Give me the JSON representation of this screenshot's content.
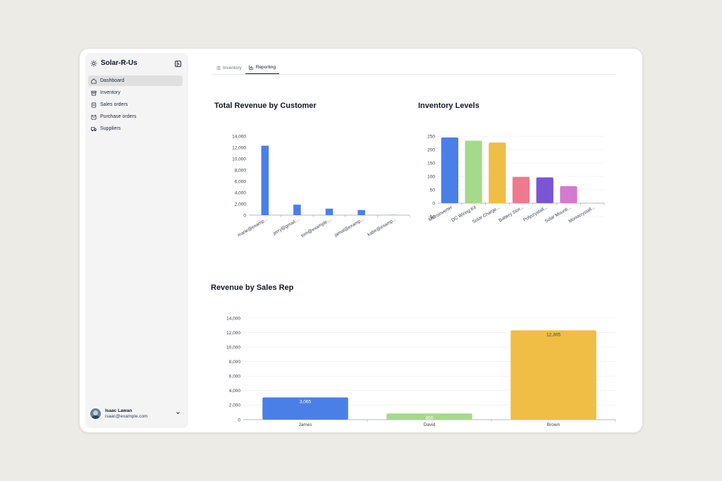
{
  "app": {
    "name": "Solar-R-Us"
  },
  "sidebar": {
    "items": [
      {
        "label": "Dashboard",
        "icon": "home-icon",
        "active": true
      },
      {
        "label": "Inventory",
        "icon": "box-icon",
        "active": false
      },
      {
        "label": "Sales orders",
        "icon": "receipt-icon",
        "active": false
      },
      {
        "label": "Purchase orders",
        "icon": "bag-icon",
        "active": false
      },
      {
        "label": "Suppliers",
        "icon": "truck-icon",
        "active": false
      }
    ],
    "user": {
      "name": "Isaac Lawan",
      "email": "isaac@example.com"
    }
  },
  "tabs": [
    {
      "label": "Inventory",
      "icon": "list-icon",
      "active": false
    },
    {
      "label": "Reporting",
      "icon": "bar-chart-icon",
      "active": true
    }
  ],
  "colors": {
    "blue": "#4a7fe8",
    "green": "#a5d98b",
    "yellow": "#f0bd45",
    "pink": "#ee7a8f",
    "purple": "#7a55d6",
    "orchid": "#d47ad0"
  },
  "chart_data": [
    {
      "type": "bar",
      "title": "Total Revenue by Customer",
      "categories": [
        "marie@examp...",
        "jerry@gmail....",
        "tom@example....",
        "jamal@examp...",
        "kabir@examp..."
      ],
      "values": [
        12305,
        1850,
        1150,
        900,
        40
      ],
      "ylim": [
        0,
        14000
      ],
      "yticks": [
        "0",
        "2,000",
        "4,000",
        "6,000",
        "8,000",
        "10,000",
        "12,000",
        "14,000"
      ],
      "color": "#4a7fe8",
      "grid": false
    },
    {
      "type": "bar",
      "title": "Inventory Levels",
      "categories": [
        "Microinverter",
        "DC Wiring Kit",
        "Solar Charge...",
        "Battery Stor...",
        "Polycrystall...",
        "Solar Mounti...",
        "Monocrystall..."
      ],
      "values": [
        245,
        233,
        226,
        98,
        96,
        63,
        0
      ],
      "colors": [
        "#4a7fe8",
        "#a5d98b",
        "#f0bd45",
        "#ee7a8f",
        "#7a55d6",
        "#d47ad0",
        "#4a7fe8"
      ],
      "ylim": [
        -50,
        250
      ],
      "yticks": [
        "-50",
        "0",
        "50",
        "100",
        "150",
        "200",
        "250"
      ],
      "grid": true
    },
    {
      "type": "bar",
      "title": "Revenue by Sales Rep",
      "categories": [
        "James",
        "David",
        "Brown"
      ],
      "values": [
        3065,
        850,
        12305
      ],
      "data_labels": [
        "3,065",
        "850",
        "12,305"
      ],
      "colors": [
        "#4a7fe8",
        "#a5d98b",
        "#f0bd45"
      ],
      "ylim": [
        0,
        14000
      ],
      "yticks": [
        "0",
        "2,000",
        "4,000",
        "6,000",
        "8,000",
        "10,000",
        "12,000",
        "14,000"
      ],
      "grid": true
    }
  ]
}
